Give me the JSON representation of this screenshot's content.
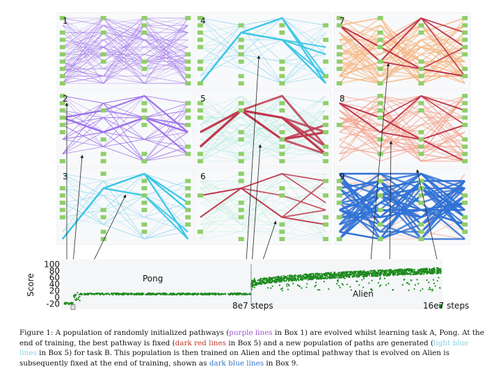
{
  "panels": [
    {
      "label": "1",
      "style": "purple-dense"
    },
    {
      "label": "2",
      "style": "purple"
    },
    {
      "label": "3",
      "style": "cyan"
    },
    {
      "label": "4",
      "style": "cyan"
    },
    {
      "label": "5",
      "style": "red-cyan"
    },
    {
      "label": "6",
      "style": "red-faint"
    },
    {
      "label": "7",
      "style": "red-orange"
    },
    {
      "label": "8",
      "style": "red-salmon"
    },
    {
      "label": "9",
      "style": "blue"
    }
  ],
  "colors": {
    "purple": "#9b6fe8",
    "cyan": "#3cc7e6",
    "darkred": "#c0394f",
    "orange": "#f5b47e",
    "salmon": "#f3a38e",
    "darkblue": "#2f72d6",
    "node": "#8fcf6a",
    "score": "#1f8a1f"
  },
  "chart_data": {
    "type": "scatter",
    "ylabel": "Score",
    "yticks": [
      100,
      80,
      60,
      40,
      20,
      0,
      -20
    ],
    "ylim": [
      -25,
      105
    ],
    "series": [
      {
        "name": "Pong",
        "segment": "task A"
      },
      {
        "name": "Alien",
        "segment": "task B"
      }
    ],
    "annotations": {
      "pong": "Pong",
      "alien": "Alien",
      "switch": "8e7 steps",
      "end": "16e7 steps"
    }
  },
  "caption": {
    "p1": "Figure 1: A population of randomly initialized pathways (",
    "purple": "purple lines",
    "p2": " in Box 1) are evolved whilst learning task A, Pong. At the end of training, the best pathway is fixed (",
    "darkred": "dark red lines",
    "p3": " in Box 5) and a new population of paths are generated (",
    "lightblue": "light blue lines",
    "p4": " in Box 5) for task B. This population is then trained on Alien and the optimal pathway that is evolved on Alien is subsequently fixed at the end of training, shown as ",
    "darkblue": "dark blue lines",
    "p5": " in Box 9."
  }
}
